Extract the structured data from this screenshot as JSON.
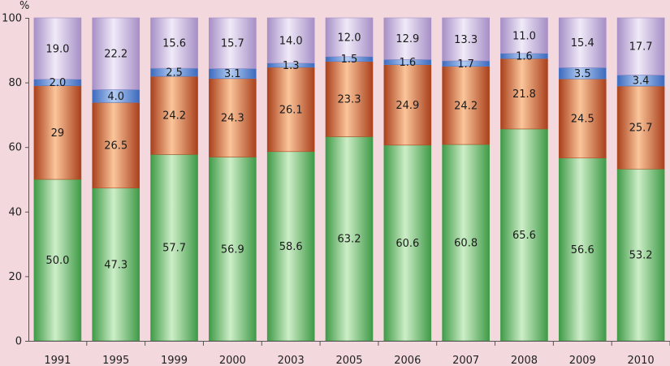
{
  "chart_data": {
    "type": "bar",
    "stacked": true,
    "ylabel": "%",
    "ylim": [
      0,
      100
    ],
    "yticks": [
      0,
      20,
      40,
      60,
      80,
      100
    ],
    "grid": false,
    "legend": "none",
    "categories": [
      "1991",
      "1995",
      "1999",
      "2000",
      "2003",
      "2005",
      "2006",
      "2007",
      "2008",
      "2009",
      "2010"
    ],
    "series": [
      {
        "values": [
          50.0,
          47.3,
          57.7,
          56.9,
          58.6,
          63.2,
          60.6,
          60.8,
          65.6,
          56.6,
          53.2
        ],
        "labels": [
          "50.0",
          "47.3",
          "57.7",
          "56.9",
          "58.6",
          "63.2",
          "60.6",
          "60.8",
          "65.6",
          "56.6",
          "53.2"
        ],
        "color": "#3f9a47"
      },
      {
        "values": [
          29,
          26.5,
          24.2,
          24.3,
          26.1,
          23.3,
          24.9,
          24.2,
          21.8,
          24.5,
          25.7
        ],
        "labels": [
          "29",
          "26.5",
          "24.2",
          "24.3",
          "26.1",
          "23.3",
          "24.9",
          "24.2",
          "21.8",
          "24.5",
          "25.7"
        ],
        "color": "#b04a25"
      },
      {
        "values": [
          2.0,
          4.0,
          2.5,
          3.1,
          1.3,
          1.5,
          1.6,
          1.7,
          1.6,
          3.5,
          3.4
        ],
        "labels": [
          "2.0",
          "4.0",
          "2.5",
          "3.1",
          "1.3",
          "1.5",
          "1.6",
          "1.7",
          "1.6",
          "3.5",
          "3.4"
        ],
        "color": "#4f7fd0"
      },
      {
        "values": [
          19.0,
          22.2,
          15.6,
          15.7,
          14.0,
          12.0,
          12.9,
          13.3,
          11.0,
          15.4,
          17.7
        ],
        "labels": [
          "19.0",
          "22.2",
          "15.6",
          "15.7",
          "14.0",
          "12.0",
          "12.9",
          "13.3",
          "11.0",
          "15.4",
          "17.7"
        ],
        "color": "#a58fc4"
      }
    ]
  }
}
